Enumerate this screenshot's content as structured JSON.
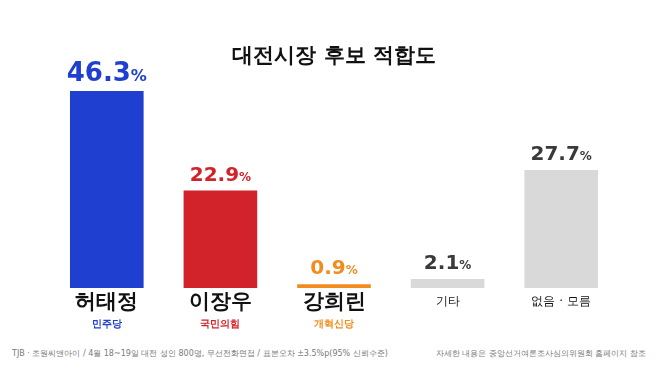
{
  "chart_data": {
    "type": "bar",
    "title": "대전시장 후보 적합도",
    "categories": [
      "허태정",
      "이장우",
      "강희린",
      "기타",
      "없음 · 모름"
    ],
    "values": [
      46.3,
      22.9,
      0.9,
      2.1,
      27.7
    ],
    "value_labels": [
      "46.3%",
      "22.9%",
      "0.9%",
      "2.1%",
      "27.7%"
    ],
    "colors": [
      "#1f3fd1",
      "#d2232a",
      "#f28c1e",
      "#d9d9d9",
      "#d9d9d9"
    ],
    "party_labels": [
      "민주당",
      "국민의힘",
      "개혁신당",
      null,
      null
    ],
    "ylim": [
      0,
      50
    ],
    "grid": false,
    "data_labels": true,
    "tick_labels": "x",
    "annotations": [
      "TJB · 조원씨앤아이 / 4월 18~19일 대전 성인 800명, 무선전화면접 / 표본오차 ±3.5%p(95% 신뢰수준)",
      "자세한 내용은 중앙선거여론조사심의위원회 홈페이지 참조"
    ]
  }
}
